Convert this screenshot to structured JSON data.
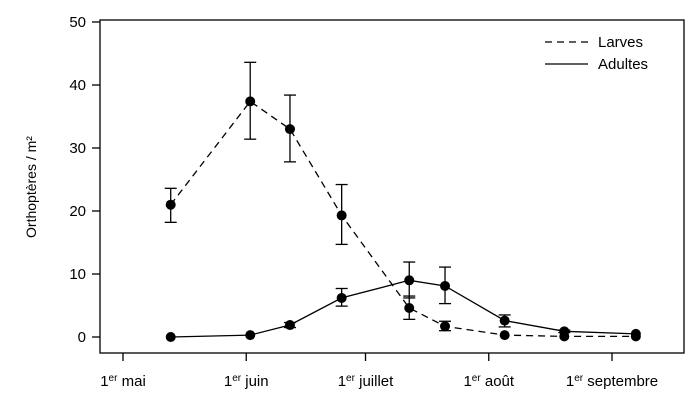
{
  "chart_data": {
    "type": "line",
    "title": "",
    "xlabel": "",
    "ylabel": "Orthoptères / m²",
    "ylim": [
      0,
      50
    ],
    "yticks": [
      0,
      10,
      20,
      30,
      40,
      50
    ],
    "xlim_days": [
      0,
      132
    ],
    "xticks": [
      {
        "day": 0,
        "prefix": "1",
        "sup": "er",
        "label": "mai"
      },
      {
        "day": 31,
        "prefix": "1",
        "sup": "er",
        "label": "juin"
      },
      {
        "day": 61,
        "prefix": "1",
        "sup": "er",
        "label": "juillet"
      },
      {
        "day": 92,
        "prefix": "1",
        "sup": "er",
        "label": "août"
      },
      {
        "day": 123,
        "prefix": "1",
        "sup": "er",
        "label": "septembre"
      }
    ],
    "legend_position": "top-right",
    "series": [
      {
        "name": "Larves",
        "line_style": "dashed",
        "points": [
          {
            "day": 12,
            "y": 21,
            "lo": 18.2,
            "hi": 23.6
          },
          {
            "day": 32,
            "y": 37.4,
            "lo": 31.4,
            "hi": 43.6
          },
          {
            "day": 42,
            "y": 33,
            "lo": 27.8,
            "hi": 38.4
          },
          {
            "day": 55,
            "y": 19.3,
            "lo": 14.7,
            "hi": 24.2
          },
          {
            "day": 72,
            "y": 4.6,
            "lo": 2.8,
            "hi": 6.5
          },
          {
            "day": 81,
            "y": 1.7,
            "lo": 1.0,
            "hi": 2.5
          },
          {
            "day": 96,
            "y": 0.3,
            "lo": 0.3,
            "hi": 0.3
          },
          {
            "day": 111,
            "y": 0.1,
            "lo": 0.1,
            "hi": 0.1
          },
          {
            "day": 129,
            "y": 0.1,
            "lo": 0.1,
            "hi": 0.1
          }
        ]
      },
      {
        "name": "Adultes",
        "line_style": "solid",
        "points": [
          {
            "day": 12,
            "y": 0,
            "lo": 0,
            "hi": 0
          },
          {
            "day": 32,
            "y": 0.3,
            "lo": 0.3,
            "hi": 0.3
          },
          {
            "day": 42,
            "y": 1.9,
            "lo": 1.5,
            "hi": 2.3
          },
          {
            "day": 55,
            "y": 6.2,
            "lo": 4.9,
            "hi": 7.7
          },
          {
            "day": 72,
            "y": 9.0,
            "lo": 6.2,
            "hi": 11.9
          },
          {
            "day": 81,
            "y": 8.1,
            "lo": 5.3,
            "hi": 11.1
          },
          {
            "day": 96,
            "y": 2.6,
            "lo": 1.6,
            "hi": 3.5
          },
          {
            "day": 111,
            "y": 0.9,
            "lo": 0.7,
            "hi": 1.1
          },
          {
            "day": 129,
            "y": 0.5,
            "lo": 0.5,
            "hi": 0.5
          }
        ]
      }
    ]
  }
}
